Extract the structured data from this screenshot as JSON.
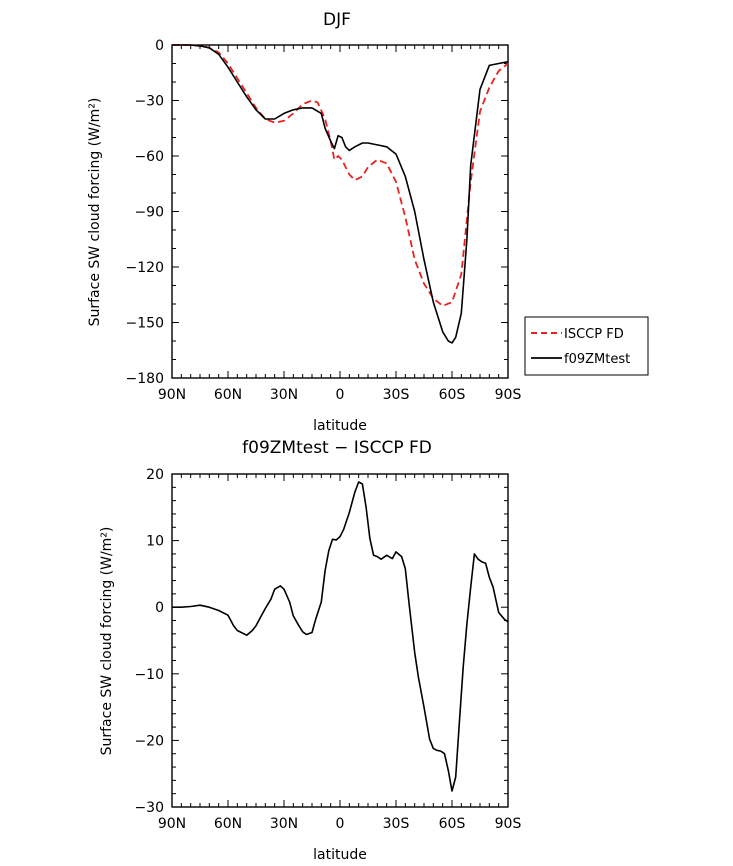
{
  "chart_data": [
    {
      "type": "line",
      "title": "DJF",
      "xlabel": "latitude",
      "ylabel": "Surface SW cloud forcing (W/m²)",
      "xlim": [
        -90,
        90
      ],
      "ylim": [
        -180,
        0
      ],
      "x_ticks": [
        -90,
        -60,
        -30,
        0,
        30,
        60,
        90
      ],
      "x_tick_labels": [
        "90N",
        "60N",
        "30N",
        "0",
        "30S",
        "60S",
        "90S"
      ],
      "y_ticks": [
        0,
        -30,
        -60,
        -90,
        -120,
        -150,
        -180
      ],
      "y_tick_labels": [
        "0",
        "−30",
        "−60",
        "−90",
        "−120",
        "−150",
        "−180"
      ],
      "legend_position": "right",
      "series": [
        {
          "name": "ISCCP FD",
          "color": "#e8221e",
          "dash": "dashed",
          "x": [
            -90,
            -85,
            -80,
            -75,
            -70,
            -65,
            -60,
            -55,
            -50,
            -45,
            -40,
            -35,
            -30,
            -25,
            -20,
            -15,
            -12,
            -8,
            -5,
            -3,
            -1,
            1,
            3,
            5,
            8,
            12,
            15,
            20,
            25,
            30,
            35,
            40,
            45,
            50,
            55,
            60,
            65,
            70,
            75,
            80,
            85,
            90
          ],
          "y": [
            0,
            0,
            0,
            -0.5,
            -1.5,
            -4,
            -10,
            -18,
            -26,
            -34,
            -40,
            -42,
            -41,
            -37,
            -32,
            -30,
            -31,
            -40,
            -52,
            -62,
            -60,
            -62,
            -66,
            -70,
            -73,
            -71,
            -66,
            -62,
            -64,
            -74,
            -93,
            -116,
            -129,
            -137,
            -141,
            -139,
            -124,
            -74,
            -36,
            -23,
            -14,
            -10
          ]
        },
        {
          "name": "f09ZMtest",
          "color": "#000000",
          "dash": "solid",
          "x": [
            -90,
            -85,
            -80,
            -75,
            -70,
            -65,
            -60,
            -55,
            -50,
            -45,
            -40,
            -35,
            -30,
            -25,
            -20,
            -15,
            -10,
            -8,
            -5,
            -3,
            -1,
            1,
            3,
            5,
            8,
            12,
            15,
            20,
            25,
            30,
            35,
            40,
            45,
            50,
            55,
            58,
            60,
            62,
            65,
            68,
            70,
            75,
            80,
            85,
            90
          ],
          "y": [
            0,
            0,
            0,
            -0.5,
            -1.5,
            -5,
            -12,
            -20,
            -28,
            -35,
            -40,
            -40,
            -37,
            -35,
            -34,
            -34,
            -37,
            -45,
            -52,
            -56,
            -49,
            -50,
            -55,
            -57,
            -55,
            -53,
            -53,
            -54,
            -55,
            -59,
            -71,
            -90,
            -116,
            -139,
            -155,
            -160,
            -161,
            -158,
            -145,
            -105,
            -65,
            -24,
            -11,
            -10,
            -9
          ]
        }
      ]
    },
    {
      "type": "line",
      "title": "f09ZMtest − ISCCP FD",
      "xlabel": "latitude",
      "ylabel": "Surface SW cloud forcing (W/m²)",
      "xlim": [
        -90,
        90
      ],
      "ylim": [
        -30,
        20
      ],
      "x_ticks": [
        -90,
        -60,
        -30,
        0,
        30,
        60,
        90
      ],
      "x_tick_labels": [
        "90N",
        "60N",
        "30N",
        "0",
        "30S",
        "60S",
        "90S"
      ],
      "y_ticks": [
        20,
        10,
        0,
        -10,
        -20,
        -30
      ],
      "y_tick_labels": [
        "20",
        "10",
        "0",
        "−10",
        "−20",
        "−30"
      ],
      "series": [
        {
          "color": "#000000",
          "dash": "solid",
          "x": [
            -90,
            -85,
            -80,
            -75,
            -70,
            -65,
            -60,
            -57,
            -55,
            -50,
            -47,
            -45,
            -42,
            -40,
            -37,
            -35,
            -32,
            -30,
            -27,
            -25,
            -22,
            -20,
            -18,
            -15,
            -13,
            -10,
            -8,
            -6,
            -4,
            -2,
            0,
            2,
            5,
            8,
            10,
            12,
            14,
            16,
            18,
            20,
            22,
            25,
            28,
            30,
            33,
            35,
            37,
            40,
            42,
            45,
            48,
            50,
            52,
            54,
            56,
            58,
            60,
            62,
            64,
            66,
            68,
            70,
            72,
            74,
            76,
            78,
            80,
            82,
            85,
            88,
            90
          ],
          "y": [
            0,
            0,
            0.1,
            0.3,
            0,
            -0.5,
            -1.2,
            -2.8,
            -3.5,
            -4.2,
            -3.5,
            -2.8,
            -1.2,
            -0.2,
            1.2,
            2.7,
            3.2,
            2.7,
            0.8,
            -1.3,
            -2.8,
            -3.7,
            -4.1,
            -3.8,
            -1.8,
            0.8,
            5.5,
            8.5,
            10.2,
            10.1,
            10.6,
            11.7,
            14.2,
            17.3,
            18.8,
            18.5,
            15,
            10.3,
            7.8,
            7.6,
            7.2,
            7.8,
            7.3,
            8.3,
            7.6,
            5.8,
            0.5,
            -6.8,
            -10.5,
            -15,
            -19.8,
            -21.2,
            -21.5,
            -21.6,
            -22,
            -24.5,
            -27.6,
            -25.5,
            -17,
            -9,
            -2.5,
            3,
            8,
            7.2,
            6.8,
            6.6,
            4.5,
            3,
            -0.8,
            -1.8,
            -2.2
          ]
        }
      ]
    }
  ]
}
